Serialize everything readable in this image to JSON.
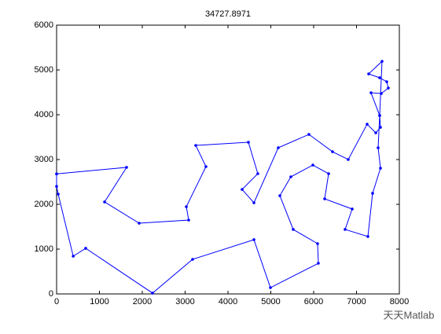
{
  "chart_data": {
    "type": "line",
    "title": "34727.8971",
    "x": [
      0,
      1633,
      1120,
      1927,
      3083,
      3028,
      3486,
      3248,
      4477,
      4697,
      4330,
      4606,
      5174,
      5890,
      6440,
      6807,
      7248,
      7450,
      7560,
      7541,
      7339,
      7578,
      7743,
      7706,
      7541,
      7284,
      7596,
      7541,
      7505,
      7560,
      7376,
      7266,
      6734,
      6899,
      6257,
      6349,
      5982,
      5468,
      5211,
      5523,
      6092,
      6110,
      4991,
      4606,
      3174,
      2239,
      679,
      388,
      37,
      0,
      0
    ],
    "series": [
      {
        "color": "#0000ff",
        "values": [
          2680,
          2825,
          2053,
          1579,
          1649,
          1947,
          2842,
          3316,
          3386,
          2684,
          2333,
          2035,
          3263,
          3561,
          3175,
          3000,
          3789,
          3596,
          3719,
          3982,
          4491,
          4474,
          4596,
          4737,
          4825,
          4912,
          5193,
          3982,
          3263,
          2807,
          2246,
          1281,
          1439,
          1895,
          2123,
          2684,
          2877,
          2614,
          2193,
          1439,
          1123,
          684,
          140,
          1211,
          772,
          18,
          1018,
          842,
          2228,
          2400,
          2680
        ]
      }
    ],
    "xlim": [
      0,
      8000
    ],
    "xticks": [
      0,
      1000,
      2000,
      3000,
      4000,
      5000,
      6000,
      7000,
      8000
    ],
    "ylim": [
      0,
      6000
    ],
    "yticks": [
      0,
      1000,
      2000,
      3000,
      4000,
      5000,
      6000
    ],
    "grid": false
  },
  "watermark": "天天Matlab"
}
